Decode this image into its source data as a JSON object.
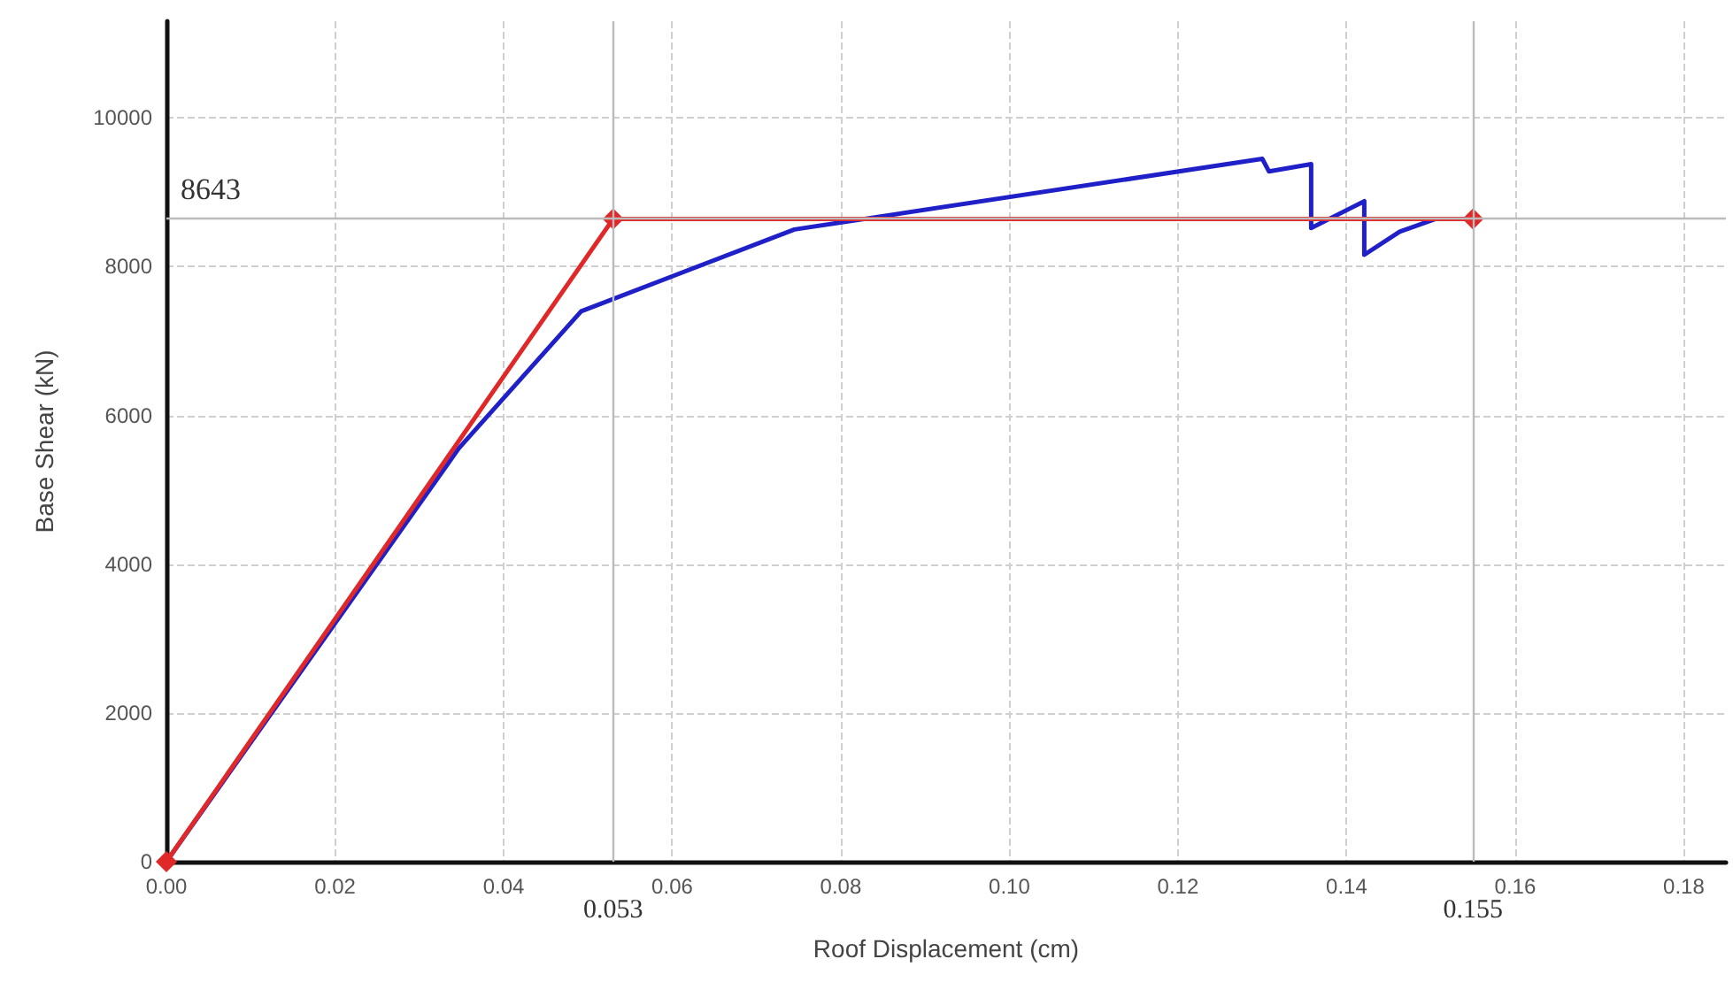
{
  "chart_data": {
    "type": "line",
    "xlabel": "Roof Displacement (cm)",
    "ylabel": "Base Shear (kN)",
    "xlim": [
      0,
      0.185
    ],
    "ylim": [
      0,
      11300
    ],
    "xticks": [
      {
        "value": 0,
        "label": "0.00"
      },
      {
        "value": 0.02,
        "label": "0.02"
      },
      {
        "value": 0.04,
        "label": "0.04"
      },
      {
        "value": 0.06,
        "label": "0.06"
      },
      {
        "value": 0.08,
        "label": "0.08"
      },
      {
        "value": 0.1,
        "label": "0.10"
      },
      {
        "value": 0.12,
        "label": "0.12"
      },
      {
        "value": 0.14,
        "label": "0.14"
      },
      {
        "value": 0.16,
        "label": "0.16"
      },
      {
        "value": 0.18,
        "label": "0.18"
      }
    ],
    "yticks": [
      0,
      2000,
      4000,
      6000,
      8000,
      10000
    ],
    "grid": true,
    "series": [
      {
        "color": "#2020c8",
        "marker": "none",
        "x": [
          0,
          0.0347,
          0.0492,
          0.0745,
          0.13,
          0.1308,
          0.1358,
          0.1358,
          0.1421,
          0.1421,
          0.1463,
          0.1505
        ],
        "values": [
          0,
          5560,
          7400,
          8500,
          9450,
          9280,
          9380,
          8520,
          8880,
          8160,
          8470,
          8640
        ]
      },
      {
        "color": "#e02828",
        "marker": "diamond",
        "x": [
          0,
          0.053,
          0.155
        ],
        "values": [
          0,
          8643,
          8643
        ]
      }
    ],
    "ref_lines": [
      {
        "axis": "y",
        "value": 8643,
        "label": "8643",
        "color": "#bbbbbb"
      },
      {
        "axis": "x",
        "value": 0.053,
        "label": "0.053",
        "color": "#bbbbbb"
      },
      {
        "axis": "x",
        "value": 0.155,
        "label": "0.155",
        "color": "#bbbbbb"
      }
    ]
  }
}
